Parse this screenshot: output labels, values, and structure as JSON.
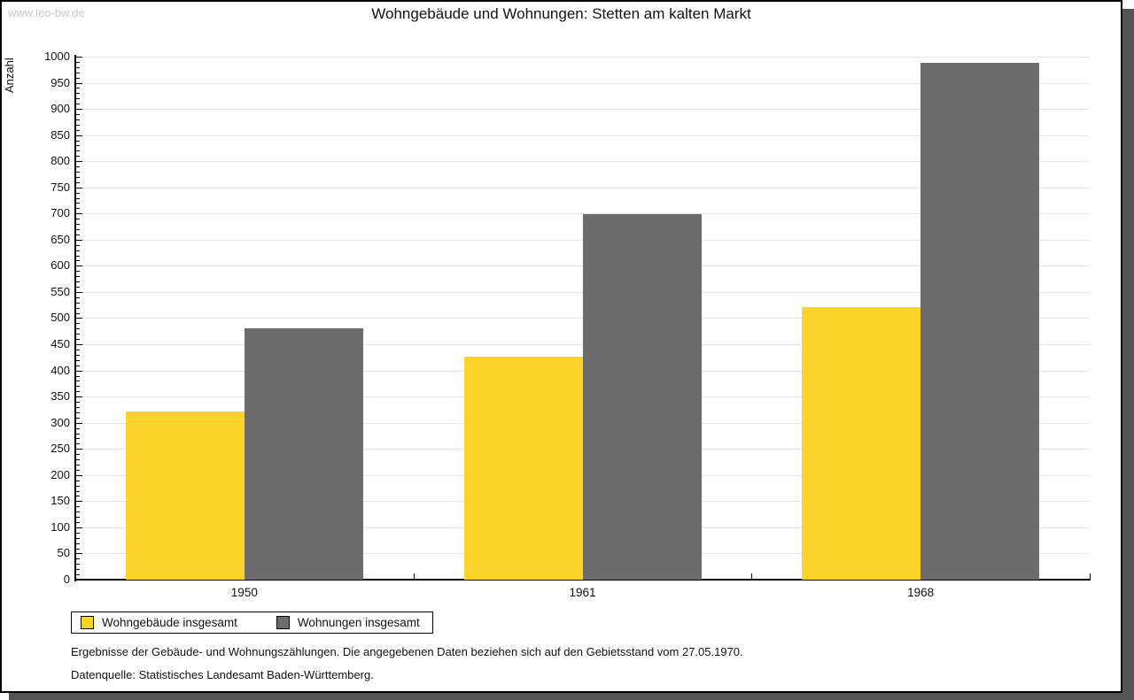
{
  "watermark": "www.leo-bw.de",
  "title": "Wohngebäude und Wohnungen: Stetten am kalten Markt",
  "chart_data": {
    "type": "bar",
    "title": "Wohngebäude und Wohnungen: Stetten am kalten Markt",
    "xlabel": "",
    "ylabel": "Anzahl",
    "categories": [
      "1950",
      "1961",
      "1968"
    ],
    "series": [
      {
        "name": "Wohngebäude insgesamt",
        "color": "#FCD32B",
        "values": [
          321,
          427,
          521
        ]
      },
      {
        "name": "Wohnungen insgesamt",
        "color": "#6C6C6C",
        "values": [
          480,
          698,
          989
        ]
      }
    ],
    "ylim": [
      0,
      1000
    ],
    "y_major_step": 50,
    "y_minor_step": 10,
    "grid": true,
    "legend_position": "bottom-left"
  },
  "footnotes": [
    "Ergebnisse der Gebäude- und Wohnungszählungen. Die angegebenen Daten beziehen sich auf den Gebietsstand vom 27.05.1970.",
    "Datenquelle: Statistisches Landesamt Baden-Württemberg."
  ],
  "colors": {
    "bar_yellow": "#FCD32B",
    "bar_grey": "#6C6C6C",
    "gridline": "#E4E4E4",
    "axis": "#000000",
    "watermark": "#C8C8C8",
    "shadow": "#555555",
    "border": "#000000",
    "background": "#FFFFFF"
  }
}
